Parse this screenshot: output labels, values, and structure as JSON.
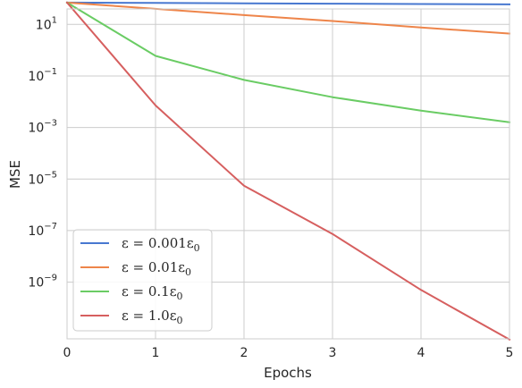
{
  "chart_data": {
    "type": "line",
    "xlabel": "Epochs",
    "ylabel": "MSE",
    "yscale": "log",
    "xlim": [
      0,
      5
    ],
    "ylim_exp": [
      -11.2,
      1.6
    ],
    "grid": true,
    "legend_placement": "lower-left",
    "x": [
      0,
      1,
      2,
      3,
      4,
      5
    ],
    "x_ticks": [
      "0",
      "1",
      "2",
      "3",
      "4",
      "5"
    ],
    "y_ticks": [
      {
        "exp": 1,
        "label": "10",
        "sup": "1"
      },
      {
        "exp": -1,
        "label": "10",
        "sup": "−1"
      },
      {
        "exp": -3,
        "label": "10",
        "sup": "−3"
      },
      {
        "exp": -5,
        "label": "10",
        "sup": "−5"
      },
      {
        "exp": -7,
        "label": "10",
        "sup": "−7"
      },
      {
        "exp": -9,
        "label": "10",
        "sup": "−9"
      }
    ],
    "series": [
      {
        "name": "ε = 0.001ε₀",
        "legend_main": "ε = 0.001ε",
        "legend_sub": "0",
        "color": "#4878d0",
        "values": [
          70,
          68,
          66,
          64,
          62,
          60
        ]
      },
      {
        "name": "ε = 0.01ε₀",
        "legend_main": "ε = 0.01ε",
        "legend_sub": "0",
        "color": "#ee854a",
        "values": [
          70,
          40,
          23,
          13.5,
          7.6,
          4.4
        ]
      },
      {
        "name": "ε = 0.1ε₀",
        "legend_main": "ε = 0.1ε",
        "legend_sub": "0",
        "color": "#6acc64",
        "values": [
          70,
          0.6,
          0.07,
          0.015,
          0.0045,
          0.0016
        ]
      },
      {
        "name": "ε = 1.0ε₀",
        "legend_main": "ε = 1.0ε",
        "legend_sub": "0",
        "color": "#d65f5f",
        "values": [
          70,
          0.0072,
          5.5e-06,
          7.4e-08,
          5e-10,
          5.9e-12
        ]
      }
    ]
  }
}
